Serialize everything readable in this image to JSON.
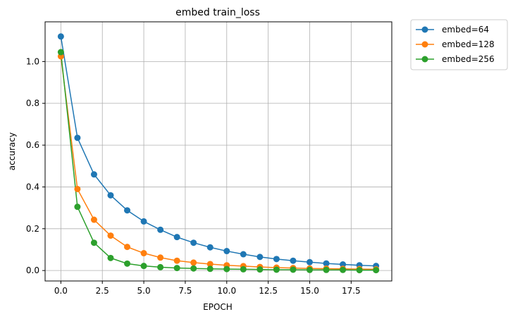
{
  "chart_data": {
    "type": "line",
    "title": "embed train_loss",
    "xlabel": "EPOCH",
    "ylabel": "accuracy",
    "xlim": [
      -0.95,
      19.95
    ],
    "ylim": [
      -0.05,
      1.19
    ],
    "xticks": [
      0.0,
      2.5,
      5.0,
      7.5,
      10.0,
      12.5,
      15.0,
      17.5
    ],
    "xtick_labels": [
      "0.0",
      "2.5",
      "5.0",
      "7.5",
      "10.0",
      "12.5",
      "15.0",
      "17.5"
    ],
    "yticks": [
      0.0,
      0.2,
      0.4,
      0.6,
      0.8,
      1.0
    ],
    "ytick_labels": [
      "0.0",
      "0.2",
      "0.4",
      "0.6",
      "0.8",
      "1.0"
    ],
    "grid": true,
    "legend_position": "outside-top-right",
    "x": [
      0,
      1,
      2,
      3,
      4,
      5,
      6,
      7,
      8,
      9,
      10,
      11,
      12,
      13,
      14,
      15,
      16,
      17,
      18,
      19
    ],
    "series": [
      {
        "name": "embed=64",
        "color": "#1f77b4",
        "values": [
          1.12,
          0.635,
          0.46,
          0.36,
          0.288,
          0.235,
          0.195,
          0.16,
          0.133,
          0.111,
          0.093,
          0.078,
          0.065,
          0.055,
          0.047,
          0.04,
          0.034,
          0.029,
          0.025,
          0.022
        ]
      },
      {
        "name": "embed=128",
        "color": "#ff7f0e",
        "values": [
          1.025,
          0.39,
          0.243,
          0.167,
          0.113,
          0.083,
          0.062,
          0.047,
          0.038,
          0.031,
          0.025,
          0.021,
          0.017,
          0.014,
          0.012,
          0.01,
          0.009,
          0.008,
          0.007,
          0.006
        ]
      },
      {
        "name": "embed=256",
        "color": "#2ca02c",
        "values": [
          1.045,
          0.305,
          0.133,
          0.06,
          0.033,
          0.022,
          0.016,
          0.012,
          0.01,
          0.008,
          0.007,
          0.006,
          0.005,
          0.004,
          0.004,
          0.003,
          0.003,
          0.003,
          0.002,
          0.002
        ]
      }
    ]
  }
}
